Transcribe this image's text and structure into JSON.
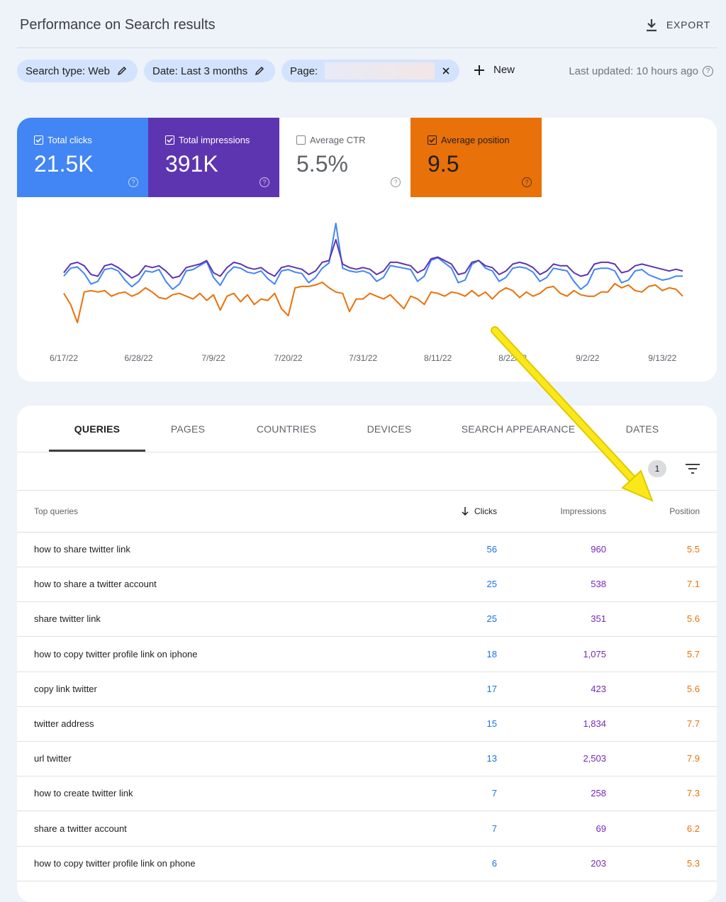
{
  "header": {
    "title": "Performance on Search results",
    "export": "EXPORT"
  },
  "filters": [
    "Search type: Web",
    "Date: Last 3 months",
    "Page:"
  ],
  "new_filter": "New",
  "last_updated": "Last updated: 10 hours ago",
  "metrics": [
    {
      "label": "Total clicks",
      "value": "21.5K"
    },
    {
      "label": "Total impressions",
      "value": "391K"
    },
    {
      "label": "Average CTR",
      "value": "5.5%"
    },
    {
      "label": "Average position",
      "value": "9.5"
    }
  ],
  "chart_data": {
    "type": "line",
    "categories": [
      "6/17/22",
      null,
      null,
      null,
      null,
      null,
      null,
      null,
      null,
      null,
      null,
      "6/28/22",
      null,
      null,
      null,
      null,
      null,
      null,
      null,
      null,
      null,
      null,
      "7/9/22",
      null,
      null,
      null,
      null,
      null,
      null,
      null,
      null,
      null,
      null,
      "7/20/22",
      null,
      null,
      null,
      null,
      null,
      null,
      null,
      null,
      null,
      null,
      "7/31/22",
      null,
      null,
      null,
      null,
      null,
      null,
      null,
      null,
      null,
      null,
      "8/11/22",
      null,
      null,
      null,
      null,
      null,
      null,
      null,
      null,
      null,
      null,
      "8/22/22",
      null,
      null,
      null,
      null,
      null,
      null,
      null,
      null,
      null,
      null,
      "9/2/22",
      null,
      null,
      null,
      null,
      null,
      null,
      null,
      null,
      null,
      null,
      "9/13/22",
      null,
      null,
      null
    ],
    "series": [
      {
        "color": "#4285f4",
        "values": [
          220,
          250,
          255,
          230,
          190,
          200,
          245,
          250,
          240,
          205,
          180,
          200,
          240,
          235,
          245,
          200,
          170,
          190,
          240,
          245,
          260,
          275,
          215,
          185,
          230,
          255,
          250,
          235,
          230,
          240,
          210,
          190,
          240,
          245,
          235,
          230,
          195,
          215,
          250,
          270,
          420,
          250,
          240,
          235,
          240,
          230,
          200,
          215,
          260,
          255,
          250,
          245,
          200,
          220,
          280,
          290,
          270,
          250,
          195,
          205,
          265,
          280,
          250,
          240,
          200,
          215,
          250,
          255,
          250,
          235,
          200,
          215,
          250,
          245,
          240,
          200,
          170,
          190,
          245,
          250,
          250,
          240,
          195,
          205,
          240,
          245,
          225,
          215,
          205,
          210,
          220,
          220
        ]
      },
      {
        "color": "#5e35b1",
        "values": [
          4000,
          4500,
          4600,
          4400,
          3900,
          3800,
          4400,
          4500,
          4300,
          4000,
          3700,
          3900,
          4400,
          4300,
          4400,
          4100,
          3700,
          3800,
          4300,
          4400,
          4500,
          4700,
          4000,
          3800,
          4300,
          4600,
          4500,
          4300,
          4200,
          4300,
          4000,
          3800,
          4300,
          4400,
          4300,
          4200,
          3900,
          4100,
          4600,
          4700,
          5900,
          4500,
          4300,
          4200,
          4300,
          4200,
          3900,
          4100,
          4600,
          4600,
          4500,
          4400,
          4000,
          4200,
          4800,
          4900,
          4700,
          4500,
          3900,
          4000,
          4600,
          4700,
          4400,
          4300,
          3900,
          4100,
          4500,
          4600,
          4500,
          4300,
          3900,
          4100,
          4500,
          4400,
          4400,
          4000,
          3800,
          3900,
          4500,
          4600,
          4600,
          4500,
          4000,
          4100,
          4400,
          4500,
          4400,
          4300,
          4200,
          4100,
          4200,
          4100
        ]
      },
      {
        "color": "#e8710a",
        "values": [
          9.4,
          10.2,
          11.5,
          9.3,
          9.2,
          9.3,
          9.2,
          9.6,
          9.4,
          9.3,
          9.6,
          9.4,
          9.0,
          9.3,
          9.7,
          9.8,
          9.5,
          9.4,
          9.6,
          9.8,
          9.4,
          9.9,
          9.5,
          10.6,
          9.6,
          9.4,
          10.0,
          9.5,
          10.2,
          9.8,
          9.9,
          9.4,
          10.5,
          11.0,
          9.0,
          8.9,
          8.9,
          8.8,
          8.6,
          9.0,
          9.3,
          9.4,
          10.7,
          9.8,
          9.8,
          9.4,
          9.6,
          9.8,
          9.5,
          10.0,
          10.5,
          9.6,
          9.8,
          10.2,
          9.3,
          9.4,
          9.6,
          9.3,
          9.4,
          9.6,
          9.2,
          9.6,
          9.3,
          9.8,
          9.3,
          9.0,
          9.2,
          9.7,
          9.3,
          9.6,
          9.4,
          9.0,
          8.9,
          9.4,
          9.6,
          9.2,
          9.5,
          9.6,
          9.6,
          9.3,
          9.3,
          8.7,
          9.0,
          8.8,
          9.2,
          9.3,
          8.9,
          8.8,
          9.2,
          9.0,
          9.1,
          9.6
        ]
      }
    ]
  },
  "tabs": [
    "QUERIES",
    "PAGES",
    "COUNTRIES",
    "DEVICES",
    "SEARCH APPEARANCE",
    "DATES"
  ],
  "active_filters": 1,
  "table": {
    "columns": [
      "Top queries",
      "Clicks",
      "Impressions",
      "Position"
    ],
    "rows": [
      [
        "how to share twitter link",
        56,
        "960",
        5.5
      ],
      [
        "how to share a twitter account",
        25,
        "538",
        7.1
      ],
      [
        "share twitter link",
        25,
        "351",
        5.6
      ],
      [
        "how to copy twitter profile link on iphone",
        18,
        "1,075",
        5.7
      ],
      [
        "copy link twitter",
        17,
        "423",
        5.6
      ],
      [
        "twitter address",
        15,
        "1,834",
        7.7
      ],
      [
        "url twitter",
        13,
        "2,503",
        7.9
      ],
      [
        "how to create twitter link",
        7,
        "258",
        7.3
      ],
      [
        "share a twitter account",
        7,
        "69",
        6.2
      ],
      [
        "how to copy twitter profile link on phone",
        6,
        "203",
        5.3
      ]
    ]
  }
}
